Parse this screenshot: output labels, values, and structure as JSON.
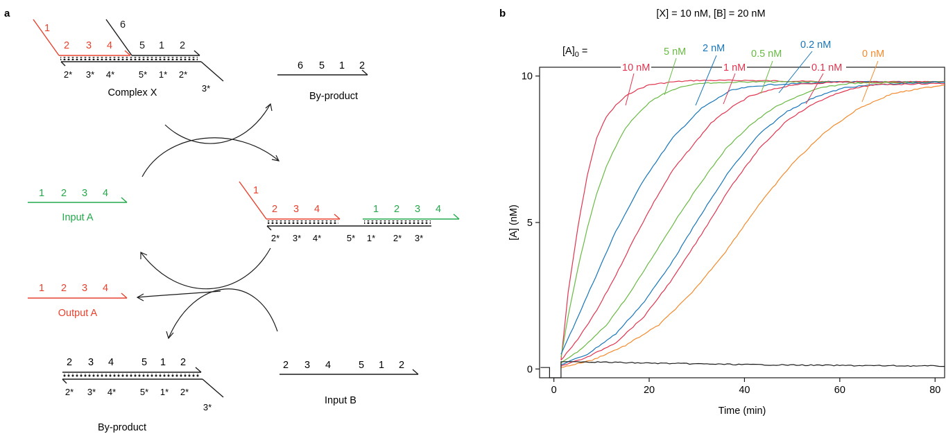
{
  "colors": {
    "red": "#e8412e",
    "green": "#22a84a",
    "black": "#1a1a1a",
    "curve_10": "#e0344f",
    "curve_5": "#69b944",
    "curve_2": "#1875b8",
    "curve_1": "#e0344f",
    "curve_05": "#69b944",
    "curve_02": "#1875b8",
    "curve_01": "#e0344f",
    "curve_0": "#f28a2e"
  },
  "panel_a": {
    "label": "a",
    "complex_x": {
      "top_red_domain": "1",
      "top_red_row": [
        "2",
        "3",
        "4"
      ],
      "top_black_domain": "6",
      "top_black_row": [
        "5",
        "1",
        "2"
      ],
      "bottom_row": [
        "2*",
        "3*",
        "4*",
        "5*",
        "1*",
        "2*"
      ],
      "bottom_tail": "3*",
      "caption": "Complex X"
    },
    "byproduct_top": {
      "domains": [
        "6",
        "5",
        "1",
        "2"
      ],
      "caption": "By-product"
    },
    "input_a": {
      "domains": [
        "1",
        "2",
        "3",
        "4"
      ],
      "caption": "Input A"
    },
    "intermediate": {
      "red_overhang": "1",
      "red_row": [
        "2",
        "3",
        "4"
      ],
      "green_row": [
        "1",
        "2",
        "3",
        "4"
      ],
      "bottom_row": [
        "2*",
        "3*",
        "4*",
        "5*",
        "1*",
        "2*",
        "3*"
      ]
    },
    "output_a": {
      "domains": [
        "1",
        "2",
        "3",
        "4"
      ],
      "caption": "Output A"
    },
    "byproduct_bottom": {
      "top_row": [
        "2",
        "3",
        "4",
        "5",
        "1",
        "2"
      ],
      "bottom_row": [
        "2*",
        "3*",
        "4*",
        "5*",
        "1*",
        "2*"
      ],
      "tail": "3*",
      "caption": "By-product"
    },
    "input_b": {
      "domains": [
        "2",
        "3",
        "4",
        "5",
        "1",
        "2"
      ],
      "caption": "Input B"
    }
  },
  "chart_data": {
    "panel_label": "b",
    "type": "line",
    "title": "[X] = 10 nM, [B] = 20 nM",
    "legend_prefix": "[A]",
    "legend_prefix_sub": "0",
    "legend_prefix_suffix": " =",
    "xlabel": "Time (min)",
    "ylabel": "[A] (nM)",
    "xlim": [
      -3,
      82
    ],
    "ylim": [
      -0.3,
      10.3
    ],
    "xticks": [
      "0",
      "20",
      "40",
      "60",
      "80"
    ],
    "yticks": [
      "0",
      "5",
      "10"
    ],
    "grid": false,
    "series": [
      {
        "name": "10 nM",
        "x": [
          1.5,
          3,
          5,
          7,
          9,
          11,
          13,
          15,
          17,
          20,
          25,
          30,
          40,
          60,
          82
        ],
        "y": [
          0.3,
          2.6,
          4.8,
          6.6,
          7.9,
          8.6,
          9.0,
          9.3,
          9.5,
          9.7,
          9.8,
          9.85,
          9.85,
          9.8,
          9.8
        ]
      },
      {
        "name": "5 nM",
        "x": [
          1.5,
          3,
          5,
          7,
          9,
          11,
          13,
          15,
          17,
          20,
          23,
          26,
          30,
          40,
          60,
          82
        ],
        "y": [
          0.4,
          1.8,
          3.4,
          4.8,
          6.0,
          6.9,
          7.6,
          8.2,
          8.6,
          9.1,
          9.4,
          9.6,
          9.75,
          9.8,
          9.8,
          9.8
        ]
      },
      {
        "name": "2 nM",
        "x": [
          1.5,
          4,
          7,
          10,
          13,
          16,
          19,
          22,
          25,
          28,
          31,
          34,
          37,
          40,
          45,
          60,
          82
        ],
        "y": [
          0.5,
          1.4,
          2.5,
          3.6,
          4.7,
          5.6,
          6.5,
          7.2,
          7.9,
          8.4,
          8.9,
          9.2,
          9.5,
          9.6,
          9.7,
          9.8,
          9.8
        ]
      },
      {
        "name": "1 nM",
        "x": [
          1.5,
          5,
          9,
          13,
          17,
          21,
          25,
          29,
          33,
          37,
          41,
          45,
          50,
          60,
          82
        ],
        "y": [
          0.3,
          1.0,
          2.0,
          3.2,
          4.5,
          5.7,
          6.8,
          7.6,
          8.4,
          8.9,
          9.3,
          9.5,
          9.7,
          9.8,
          9.8
        ]
      },
      {
        "name": "0.5 nM",
        "x": [
          1.5,
          6,
          11,
          16,
          21,
          26,
          31,
          36,
          41,
          46,
          51,
          56,
          62,
          82
        ],
        "y": [
          0.2,
          0.7,
          1.5,
          2.6,
          3.9,
          5.2,
          6.4,
          7.5,
          8.3,
          8.9,
          9.3,
          9.6,
          9.75,
          9.8
        ]
      },
      {
        "name": "0.2 nM",
        "x": [
          1.5,
          7,
          13,
          19,
          25,
          31,
          37,
          43,
          49,
          55,
          61,
          67,
          82
        ],
        "y": [
          0.15,
          0.5,
          1.2,
          2.3,
          3.7,
          5.3,
          6.8,
          8.0,
          8.8,
          9.3,
          9.6,
          9.7,
          9.8
        ]
      },
      {
        "name": "0.1 nM",
        "x": [
          1.5,
          7,
          13,
          19,
          25,
          31,
          37,
          43,
          49,
          55,
          61,
          67,
          82
        ],
        "y": [
          0.1,
          0.4,
          0.9,
          1.8,
          3.1,
          4.6,
          6.2,
          7.5,
          8.5,
          9.1,
          9.5,
          9.7,
          9.75
        ]
      },
      {
        "name": "0 nM",
        "x": [
          1.5,
          8,
          15,
          22,
          29,
          36,
          43,
          50,
          57,
          64,
          71,
          78,
          82
        ],
        "y": [
          0.05,
          0.3,
          0.8,
          1.5,
          2.6,
          4.0,
          5.6,
          7.0,
          8.1,
          8.9,
          9.4,
          9.6,
          9.7
        ]
      },
      {
        "name": "",
        "x": [
          -2.8,
          -0.9,
          -0.9,
          1.5,
          1.5,
          5,
          20,
          40,
          60,
          82
        ],
        "y": [
          0.05,
          0.05,
          -0.3,
          -0.3,
          0.25,
          0.25,
          0.2,
          0.15,
          0.12,
          0.1
        ]
      }
    ]
  }
}
